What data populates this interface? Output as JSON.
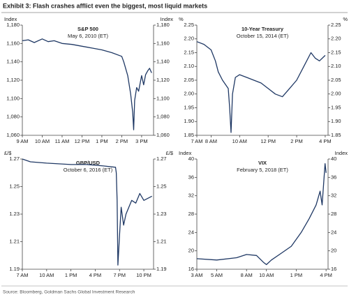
{
  "title": "Exhibit 3: Flash crashes afflict even the biggest, most liquid markets",
  "source": "Source: Bloomberg, Goldman Sachs Global Investment Research",
  "chart_data": [
    {
      "type": "line",
      "title": "S&P 500",
      "subtitle": "May 6, 2010 (ET)",
      "ylabel": "Index",
      "y2label": "Index",
      "color": "#1f3864",
      "x": [
        9,
        9.3,
        9.6,
        10,
        10.3,
        10.6,
        11,
        11.5,
        12,
        12.5,
        13,
        13.5,
        14,
        14.1,
        14.3,
        14.45,
        14.55,
        14.6,
        14.65,
        14.75,
        14.85,
        15,
        15.1,
        15.2,
        15.3,
        15.4,
        15.5
      ],
      "values": [
        1163,
        1164,
        1161,
        1165,
        1162,
        1163,
        1160,
        1159,
        1157,
        1155,
        1153,
        1150,
        1146,
        1140,
        1125,
        1105,
        1085,
        1066,
        1098,
        1112,
        1108,
        1125,
        1115,
        1126,
        1130,
        1133,
        1128
      ],
      "xlim": [
        9,
        15.6
      ],
      "xticks": [
        {
          "value": 9,
          "label": "9 AM"
        },
        {
          "value": 10,
          "label": "10 AM"
        },
        {
          "value": 11,
          "label": "11 AM"
        },
        {
          "value": 12,
          "label": "12 PM"
        },
        {
          "value": 13,
          "label": "1 PM"
        },
        {
          "value": 14,
          "label": "2 PM"
        },
        {
          "value": 15,
          "label": "3 PM"
        }
      ],
      "ylim": [
        1060,
        1180
      ],
      "yticks": [
        {
          "value": 1060,
          "label": "1,060"
        },
        {
          "value": 1080,
          "label": "1,080"
        },
        {
          "value": 1100,
          "label": "1,100"
        },
        {
          "value": 1120,
          "label": "1,120"
        },
        {
          "value": 1140,
          "label": "1,140"
        },
        {
          "value": 1160,
          "label": "1,160"
        },
        {
          "value": 1180,
          "label": "1,180"
        }
      ],
      "y2lim": [
        1060,
        1180
      ],
      "y2ticks": [
        {
          "value": 1060,
          "label": "1,060"
        },
        {
          "value": 1080,
          "label": "1,080"
        },
        {
          "value": 1100,
          "label": "1,100"
        },
        {
          "value": 1120,
          "label": "1,120"
        },
        {
          "value": 1140,
          "label": "1,140"
        },
        {
          "value": 1160,
          "label": "1,160"
        },
        {
          "value": 1180,
          "label": "1,180"
        }
      ]
    },
    {
      "type": "line",
      "title": "10-Year Treasury",
      "subtitle": "October 15, 2014 (ET)",
      "ylabel": "%",
      "y2label": "%",
      "color": "#1f3864",
      "x": [
        7,
        7.5,
        8,
        8.3,
        8.5,
        8.8,
        9.2,
        9.3,
        9.4,
        9.5,
        9.7,
        10,
        10.5,
        11,
        11.5,
        12,
        12.5,
        13,
        13.5,
        14,
        14.5,
        15,
        15.3,
        15.6,
        16
      ],
      "values": [
        2.19,
        2.18,
        2.16,
        2.12,
        2.08,
        2.05,
        2.02,
        1.95,
        1.86,
        2.0,
        2.06,
        2.07,
        2.06,
        2.05,
        2.04,
        2.02,
        2.0,
        1.99,
        2.02,
        2.05,
        2.1,
        2.15,
        2.13,
        2.12,
        2.14
      ],
      "xlim": [
        7,
        16.2
      ],
      "xticks": [
        {
          "value": 7,
          "label": "7 AM"
        },
        {
          "value": 8,
          "label": "8 AM"
        },
        {
          "value": 10,
          "label": "10 AM"
        },
        {
          "value": 12,
          "label": "12 PM"
        },
        {
          "value": 14,
          "label": "2 PM"
        },
        {
          "value": 16,
          "label": "4 PM"
        }
      ],
      "ylim": [
        1.85,
        2.25
      ],
      "yticks": [
        1.85,
        {
          "value": 1.9,
          "label": "1.90"
        },
        1.95,
        {
          "value": 2,
          "label": "2.00"
        },
        2.05,
        {
          "value": 2.1,
          "label": "2.10"
        },
        2.15,
        {
          "value": 2.2,
          "label": "2.20"
        },
        2.25
      ],
      "y2lim": [
        1.85,
        2.25
      ],
      "y2ticks": [
        1.85,
        {
          "value": 1.9,
          "label": "1.90"
        },
        1.95,
        {
          "value": 2,
          "label": "2.00"
        },
        2.05,
        {
          "value": 2.1,
          "label": "2.10"
        },
        2.15,
        {
          "value": 2.2,
          "label": "2.20"
        },
        2.25
      ]
    },
    {
      "type": "line",
      "title": "GBP/USD",
      "subtitle": "October 6, 2016 (ET)",
      "ylabel": "£/$",
      "y2label": "£/$",
      "color": "#1f3864",
      "x": [
        7,
        8,
        10,
        13,
        15,
        17,
        18.5,
        18.6,
        18.7,
        18.8,
        19,
        19.2,
        19.5,
        19.8,
        20.5,
        21,
        21.5,
        22,
        23
      ],
      "values": [
        1.27,
        1.268,
        1.267,
        1.266,
        1.266,
        1.265,
        1.264,
        1.26,
        1.24,
        1.193,
        1.215,
        1.235,
        1.222,
        1.23,
        1.24,
        1.238,
        1.245,
        1.24,
        1.243
      ],
      "xlim": [
        7,
        23.2
      ],
      "xticks": [
        {
          "value": 7,
          "label": "7 AM"
        },
        {
          "value": 10,
          "label": "10 AM"
        },
        {
          "value": 13,
          "label": "1 PM"
        },
        {
          "value": 16,
          "label": "4 PM"
        },
        {
          "value": 19,
          "label": "7 PM"
        },
        {
          "value": 22,
          "label": "10 PM"
        }
      ],
      "ylim": [
        1.19,
        1.27
      ],
      "yticks": [
        1.19,
        1.21,
        1.23,
        1.25,
        1.27
      ],
      "y2lim": [
        1.19,
        1.27
      ],
      "y2ticks": [
        1.19,
        1.21,
        1.23,
        1.25,
        1.27
      ]
    },
    {
      "type": "line",
      "title": "VIX",
      "subtitle": "February 5, 2018 (ET)",
      "ylabel": "Index",
      "y2label": "Index",
      "color": "#1f3864",
      "x": [
        3,
        5,
        7,
        8,
        9,
        9.7,
        10,
        10.5,
        11.5,
        12.5,
        13.5,
        14.3,
        15,
        15.4,
        15.6,
        15.8,
        15.9,
        16
      ],
      "values": [
        18.3,
        18,
        18.5,
        19.2,
        19,
        17.5,
        17,
        18,
        19.5,
        21,
        24,
        27,
        30,
        33,
        30,
        36,
        39,
        37
      ],
      "xlim": [
        3,
        16.2
      ],
      "xticks": [
        {
          "value": 3,
          "label": "3 AM"
        },
        {
          "value": 5,
          "label": "5 AM"
        },
        {
          "value": 8,
          "label": "8 AM"
        },
        {
          "value": 10,
          "label": "10 AM"
        },
        {
          "value": 13,
          "label": "1 PM"
        },
        {
          "value": 16,
          "label": "4 PM"
        }
      ],
      "ylim": [
        16,
        40
      ],
      "yticks": [
        16,
        20,
        24,
        28,
        32,
        36,
        40
      ],
      "y2lim": [
        16,
        40
      ],
      "y2ticks": [
        16,
        20,
        24,
        28,
        32,
        36,
        40
      ]
    }
  ]
}
